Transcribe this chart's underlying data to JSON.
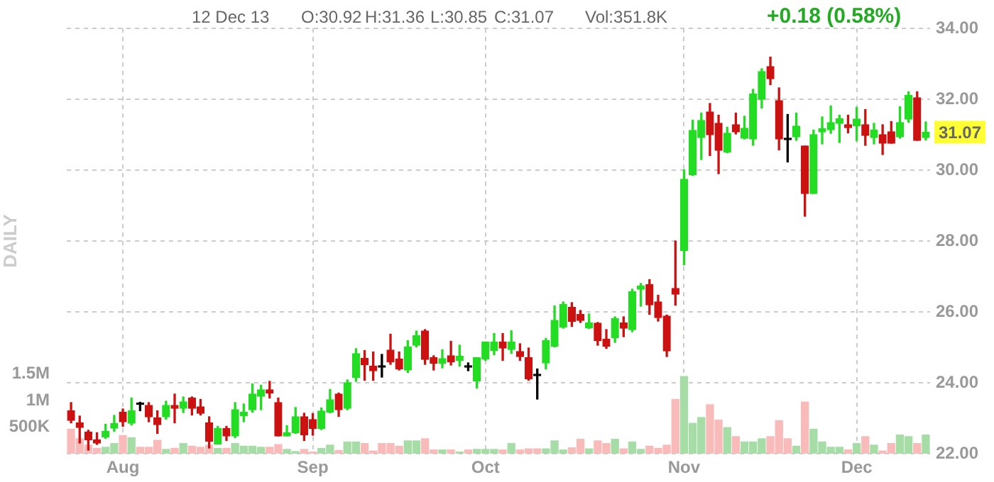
{
  "chart_data": {
    "type": "candlestick",
    "annotations": [
      "12 Dec 13",
      "O:30.92",
      "H:31.36",
      "L:30.85",
      "C:31.07",
      "Vol:351.8K",
      "+0.18 (0.58%)",
      {
        "text": "31.07",
        "y": 31.07
      }
    ],
    "y2label": "DAILY",
    "categories": [
      null,
      null,
      null,
      null,
      null,
      null,
      "Aug",
      null,
      null,
      null,
      null,
      null,
      null,
      null,
      null,
      null,
      null,
      null,
      null,
      null,
      null,
      null,
      null,
      null,
      null,
      null,
      null,
      null,
      "Sep",
      null,
      null,
      null,
      null,
      null,
      null,
      null,
      null,
      null,
      null,
      null,
      null,
      null,
      null,
      null,
      null,
      null,
      null,
      null,
      "Oct",
      null,
      null,
      null,
      null,
      null,
      null,
      null,
      null,
      null,
      null,
      null,
      null,
      null,
      null,
      null,
      null,
      null,
      null,
      null,
      null,
      null,
      null,
      "Nov",
      null,
      null,
      null,
      null,
      null,
      null,
      null,
      null,
      null,
      null,
      null,
      null,
      null,
      null,
      null,
      null,
      null,
      null,
      null,
      "Dec",
      null,
      null,
      null,
      null,
      null,
      null,
      null,
      null
    ],
    "ohlc": [
      [
        23.21,
        23.44,
        22.87,
        22.94
      ],
      [
        22.87,
        23.06,
        22.3,
        22.74
      ],
      [
        22.61,
        22.66,
        22.1,
        22.39
      ],
      [
        22.39,
        22.59,
        22.26,
        22.3
      ],
      [
        22.47,
        22.83,
        22.43,
        22.63
      ],
      [
        22.72,
        23.08,
        22.63,
        22.85
      ],
      [
        23.17,
        23.26,
        22.77,
        22.9
      ],
      [
        22.86,
        23.57,
        22.81,
        23.21
      ],
      [
        23.39,
        23.45,
        23.21,
        23.39
      ],
      [
        23.36,
        23.44,
        22.9,
        23.04
      ],
      [
        23.01,
        23.21,
        22.57,
        22.82
      ],
      [
        23.04,
        23.48,
        22.97,
        23.36
      ],
      [
        23.36,
        23.68,
        22.87,
        23.28
      ],
      [
        23.28,
        23.6,
        23.16,
        23.46
      ],
      [
        23.57,
        23.6,
        23.09,
        23.28
      ],
      [
        23.32,
        23.53,
        23.09,
        23.14
      ],
      [
        22.87,
        23.04,
        22.16,
        22.35
      ],
      [
        22.27,
        22.77,
        22.27,
        22.71
      ],
      [
        22.71,
        22.77,
        22.37,
        22.5
      ],
      [
        22.5,
        23.44,
        22.45,
        23.24
      ],
      [
        23.07,
        23.4,
        22.9,
        23.17
      ],
      [
        23.24,
        23.97,
        23.17,
        23.68
      ],
      [
        23.62,
        23.93,
        23.24,
        23.8
      ],
      [
        23.8,
        24.04,
        23.57,
        23.71
      ],
      [
        23.44,
        23.57,
        22.5,
        22.5
      ],
      [
        22.5,
        22.79,
        22.5,
        22.59
      ],
      [
        22.59,
        23.3,
        22.57,
        23.04
      ],
      [
        23.04,
        23.14,
        22.37,
        22.53
      ],
      [
        22.96,
        23.13,
        22.52,
        22.71
      ],
      [
        22.71,
        23.29,
        22.68,
        23.2
      ],
      [
        23.17,
        23.81,
        23.15,
        23.52
      ],
      [
        23.68,
        23.71,
        23.05,
        23.24
      ],
      [
        23.28,
        24.08,
        23.24,
        24.0
      ],
      [
        24.15,
        24.96,
        24.04,
        24.82
      ],
      [
        24.69,
        24.91,
        24.07,
        24.51
      ],
      [
        24.47,
        24.87,
        24.07,
        24.34
      ],
      [
        24.44,
        24.8,
        24.16,
        24.44
      ],
      [
        24.92,
        25.37,
        24.52,
        24.59
      ],
      [
        24.67,
        24.87,
        24.36,
        24.39
      ],
      [
        24.36,
        25.19,
        24.29,
        25.01
      ],
      [
        25.06,
        25.46,
        25.01,
        25.33
      ],
      [
        25.46,
        25.5,
        24.52,
        24.66
      ],
      [
        24.71,
        24.76,
        24.36,
        24.55
      ],
      [
        24.55,
        24.93,
        24.42,
        24.68
      ],
      [
        24.76,
        25.17,
        24.5,
        24.59
      ],
      [
        24.63,
        25.06,
        24.47,
        24.75
      ],
      [
        24.44,
        24.56,
        24.34,
        24.44
      ],
      [
        24.05,
        24.71,
        23.85,
        24.71
      ],
      [
        24.67,
        25.15,
        24.63,
        25.15
      ],
      [
        24.91,
        25.39,
        24.79,
        25.15
      ],
      [
        25.15,
        25.39,
        24.63,
        24.98
      ],
      [
        24.94,
        25.47,
        24.83,
        25.15
      ],
      [
        24.88,
        25.1,
        24.63,
        24.74
      ],
      [
        24.71,
        24.98,
        24.07,
        24.11
      ],
      [
        24.2,
        24.39,
        23.54,
        24.2
      ],
      [
        24.56,
        25.25,
        24.39,
        25.19
      ],
      [
        25.03,
        26.17,
        25.01,
        25.76
      ],
      [
        25.57,
        26.28,
        25.54,
        26.21
      ],
      [
        26.13,
        26.26,
        25.59,
        25.73
      ],
      [
        25.93,
        26.04,
        25.7,
        25.76
      ],
      [
        25.55,
        25.94,
        25.53,
        25.69
      ],
      [
        25.68,
        25.7,
        25.06,
        25.19
      ],
      [
        25.23,
        25.5,
        24.97,
        25.03
      ],
      [
        25.27,
        25.86,
        25.14,
        25.81
      ],
      [
        25.69,
        25.86,
        25.3,
        25.54
      ],
      [
        25.5,
        26.64,
        25.44,
        26.57
      ],
      [
        26.64,
        26.8,
        26.16,
        26.73
      ],
      [
        26.77,
        26.91,
        25.93,
        26.2
      ],
      [
        26.28,
        26.47,
        25.74,
        25.84
      ],
      [
        25.88,
        25.91,
        24.74,
        24.9
      ],
      [
        26.66,
        28.0,
        26.19,
        26.5
      ],
      [
        27.73,
        30.01,
        27.33,
        29.74
      ],
      [
        29.87,
        31.41,
        29.85,
        31.12
      ],
      [
        30.92,
        31.61,
        30.3,
        31.4
      ],
      [
        31.64,
        31.88,
        30.41,
        31.0
      ],
      [
        31.32,
        31.55,
        29.9,
        30.56
      ],
      [
        30.51,
        31.21,
        30.49,
        31.04
      ],
      [
        31.28,
        31.61,
        31.02,
        31.08
      ],
      [
        30.9,
        31.52,
        30.88,
        31.18
      ],
      [
        30.88,
        32.28,
        30.7,
        32.15
      ],
      [
        32.0,
        32.86,
        31.75,
        32.78
      ],
      [
        32.92,
        33.19,
        32.41,
        32.58
      ],
      [
        31.96,
        32.32,
        30.57,
        30.88
      ],
      [
        30.86,
        31.57,
        30.23,
        30.86
      ],
      [
        30.94,
        31.61,
        30.84,
        31.24
      ],
      [
        30.68,
        30.68,
        28.7,
        29.34
      ],
      [
        29.34,
        31.13,
        29.34,
        31.0
      ],
      [
        31.08,
        31.5,
        30.74,
        31.17
      ],
      [
        31.14,
        31.81,
        31.04,
        31.34
      ],
      [
        31.32,
        31.55,
        30.78,
        31.45
      ],
      [
        31.28,
        31.55,
        31.05,
        31.2
      ],
      [
        31.25,
        31.77,
        30.83,
        31.44
      ],
      [
        31.28,
        31.71,
        30.7,
        30.98
      ],
      [
        30.92,
        31.32,
        30.74,
        31.13
      ],
      [
        31.0,
        31.28,
        30.44,
        30.76
      ],
      [
        31.08,
        31.37,
        30.76,
        30.76
      ],
      [
        30.94,
        31.79,
        30.9,
        31.34
      ],
      [
        31.44,
        32.21,
        31.35,
        32.11
      ],
      [
        32.04,
        32.21,
        30.84,
        30.84
      ],
      [
        30.92,
        31.36,
        30.85,
        31.07
      ]
    ],
    "colors": [
      "#cc1111",
      "#cc1111",
      "#cc1111",
      "#cc1111",
      "#22dd22",
      "#22dd22",
      "#cc1111",
      "#22dd22",
      "#000000",
      "#cc1111",
      "#cc1111",
      "#22dd22",
      "#cc1111",
      "#22dd22",
      "#cc1111",
      "#cc1111",
      "#cc1111",
      "#22dd22",
      "#cc1111",
      "#22dd22",
      "#22dd22",
      "#22dd22",
      "#22dd22",
      "#cc1111",
      "#cc1111",
      "#22dd22",
      "#22dd22",
      "#cc1111",
      "#cc1111",
      "#22dd22",
      "#22dd22",
      "#cc1111",
      "#22dd22",
      "#22dd22",
      "#cc1111",
      "#cc1111",
      "#000000",
      "#cc1111",
      "#cc1111",
      "#22dd22",
      "#22dd22",
      "#cc1111",
      "#cc1111",
      "#22dd22",
      "#cc1111",
      "#22dd22",
      "#000000",
      "#22dd22",
      "#22dd22",
      "#22dd22",
      "#cc1111",
      "#22dd22",
      "#cc1111",
      "#cc1111",
      "#000000",
      "#22dd22",
      "#22dd22",
      "#22dd22",
      "#cc1111",
      "#cc1111",
      "#22dd22",
      "#cc1111",
      "#cc1111",
      "#22dd22",
      "#cc1111",
      "#22dd22",
      "#22dd22",
      "#cc1111",
      "#cc1111",
      "#cc1111",
      "#cc1111",
      "#22dd22",
      "#22dd22",
      "#22dd22",
      "#cc1111",
      "#cc1111",
      "#22dd22",
      "#cc1111",
      "#22dd22",
      "#22dd22",
      "#22dd22",
      "#cc1111",
      "#cc1111",
      "#000000",
      "#22dd22",
      "#cc1111",
      "#22dd22",
      "#22dd22",
      "#22dd22",
      "#22dd22",
      "#cc1111",
      "#22dd22",
      "#cc1111",
      "#22dd22",
      "#cc1111",
      "#cc1111",
      "#22dd22",
      "#22dd22",
      "#cc1111",
      "#22dd22"
    ],
    "series": [
      {
        "type": "bar",
        "axis": "y2",
        "values": [
          460000,
          280000,
          160000,
          100000,
          120000,
          190000,
          340000,
          300000,
          120000,
          120000,
          250000,
          80000,
          100000,
          190000,
          140000,
          120000,
          160000,
          100000,
          100000,
          190000,
          140000,
          140000,
          120000,
          120000,
          170000,
          80000,
          40000,
          80000,
          30000,
          100000,
          160000,
          60000,
          220000,
          220000,
          190000,
          50000,
          190000,
          190000,
          140000,
          240000,
          240000,
          280000,
          70000,
          70000,
          70000,
          30000,
          70000,
          80000,
          80000,
          80000,
          70000,
          190000,
          70000,
          90000,
          90000,
          90000,
          240000,
          70000,
          110000,
          270000,
          90000,
          240000,
          190000,
          270000,
          90000,
          220000,
          80000,
          140000,
          100000,
          160000,
          1020000,
          1450000,
          570000,
          680000,
          920000,
          630000,
          490000,
          320000,
          220000,
          220000,
          280000,
          320000,
          620000,
          280000,
          140000,
          970000,
          460000,
          220000,
          120000,
          120000,
          70000,
          190000,
          320000,
          160000,
          50000,
          190000,
          350000,
          320000,
          190000,
          350000
        ],
        "colors": [
          "#f9baba",
          "#f9baba",
          "#f9baba",
          "#f9baba",
          "#a6dca6",
          "#a6dca6",
          "#f9baba",
          "#a6dca6",
          "#f9baba",
          "#f9baba",
          "#f9baba",
          "#a6dca6",
          "#f9baba",
          "#a6dca6",
          "#f9baba",
          "#f9baba",
          "#f9baba",
          "#a6dca6",
          "#f9baba",
          "#a6dca6",
          "#a6dca6",
          "#a6dca6",
          "#a6dca6",
          "#f9baba",
          "#f9baba",
          "#a6dca6",
          "#a6dca6",
          "#f9baba",
          "#f9baba",
          "#a6dca6",
          "#a6dca6",
          "#f9baba",
          "#a6dca6",
          "#a6dca6",
          "#f9baba",
          "#f9baba",
          "#f9baba",
          "#f9baba",
          "#f9baba",
          "#a6dca6",
          "#a6dca6",
          "#f9baba",
          "#f9baba",
          "#a6dca6",
          "#f9baba",
          "#a6dca6",
          "#f9baba",
          "#a6dca6",
          "#a6dca6",
          "#a6dca6",
          "#f9baba",
          "#a6dca6",
          "#f9baba",
          "#f9baba",
          "#f9baba",
          "#a6dca6",
          "#a6dca6",
          "#a6dca6",
          "#f9baba",
          "#f9baba",
          "#a6dca6",
          "#f9baba",
          "#f9baba",
          "#a6dca6",
          "#f9baba",
          "#a6dca6",
          "#a6dca6",
          "#f9baba",
          "#f9baba",
          "#f9baba",
          "#f9baba",
          "#a6dca6",
          "#a6dca6",
          "#a6dca6",
          "#f9baba",
          "#f9baba",
          "#a6dca6",
          "#f9baba",
          "#a6dca6",
          "#a6dca6",
          "#a6dca6",
          "#f9baba",
          "#f9baba",
          "#f9baba",
          "#a6dca6",
          "#f9baba",
          "#a6dca6",
          "#a6dca6",
          "#a6dca6",
          "#a6dca6",
          "#f9baba",
          "#a6dca6",
          "#f9baba",
          "#a6dca6",
          "#f9baba",
          "#f9baba",
          "#a6dca6",
          "#a6dca6",
          "#f9baba",
          "#a6dca6"
        ]
      }
    ],
    "ylim": [
      22,
      34
    ],
    "yticks": [
      {
        "value": 22,
        "label": "22.00"
      },
      {
        "value": 24,
        "label": "24.00"
      },
      {
        "value": 26,
        "label": "26.00"
      },
      {
        "value": 28,
        "label": "28.00"
      },
      {
        "value": 30,
        "label": "30.00"
      },
      {
        "value": 32,
        "label": "32.00"
      },
      {
        "value": 34,
        "label": "34.00"
      }
    ],
    "y2lim": [
      0,
      8000000
    ],
    "y2ticks": [
      {
        "value": 500000,
        "label": "500K"
      },
      {
        "value": 1000000,
        "label": "1M"
      },
      {
        "value": 1500000,
        "label": "1.5M"
      }
    ],
    "grid": true,
    "legend": false
  }
}
